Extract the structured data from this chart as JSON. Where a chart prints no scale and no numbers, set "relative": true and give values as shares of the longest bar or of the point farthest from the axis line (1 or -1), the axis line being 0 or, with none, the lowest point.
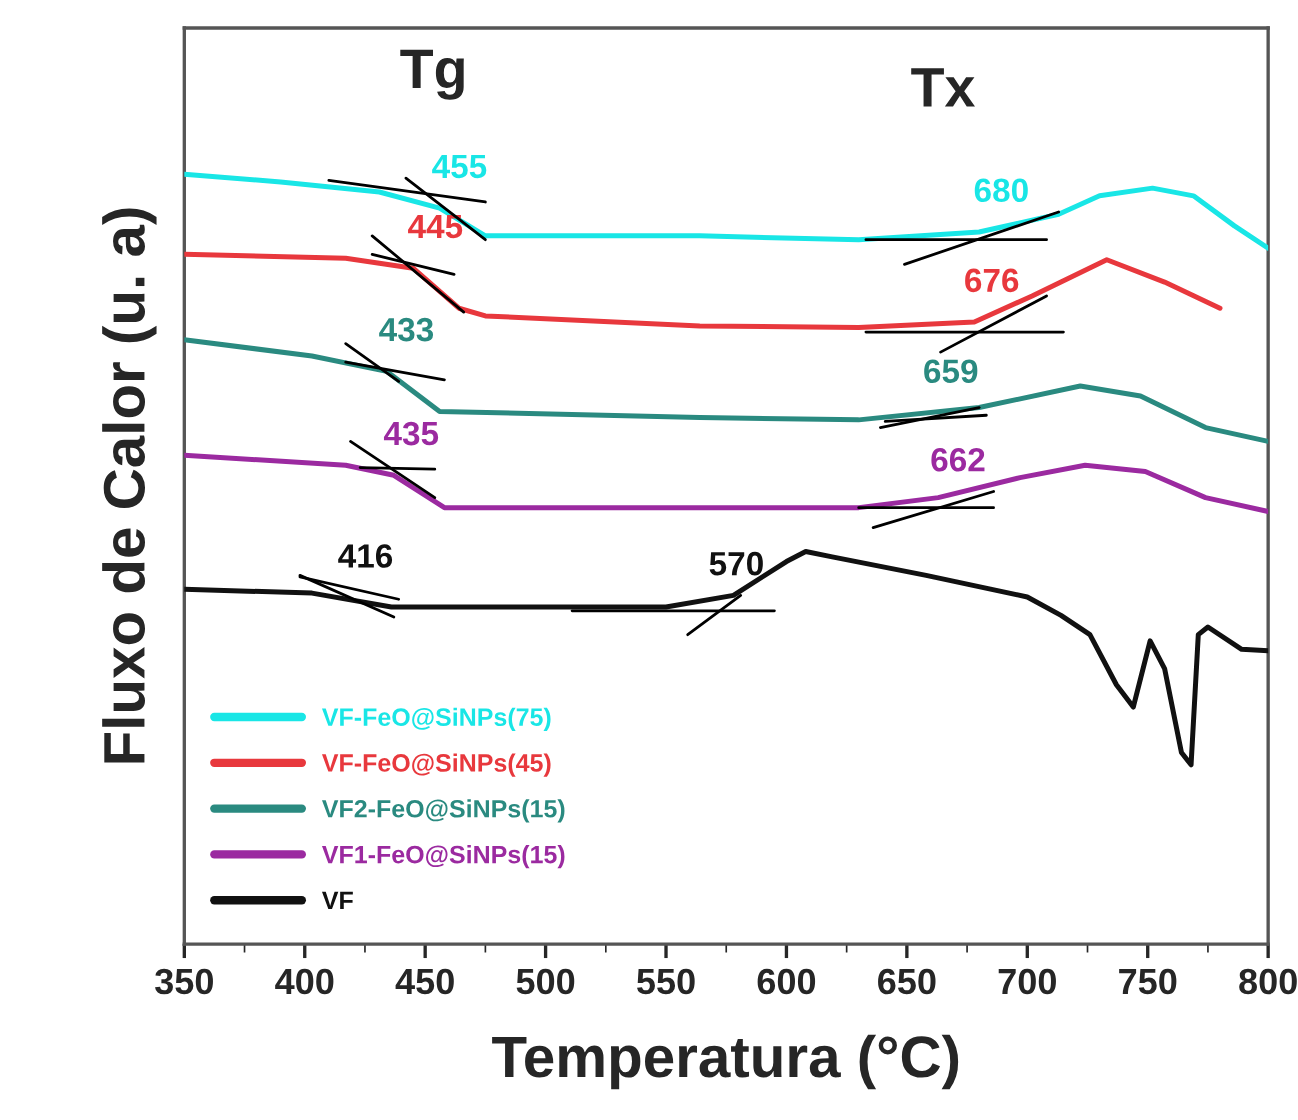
{
  "chart_data": {
    "type": "line",
    "relative": true,
    "xlabel": "Temperatura (°C)",
    "ylabel": "Fluxo de Calor (u. a)",
    "xlim": [
      350,
      800
    ],
    "xticks": [
      350,
      400,
      450,
      500,
      550,
      600,
      650,
      700,
      750,
      800
    ],
    "legend": "bottom left",
    "grid": false,
    "marker": "none",
    "line_style": "solid",
    "series": [
      {
        "name": "VF-FeO@SiNPs(75)",
        "color": "#19e6e6",
        "x": [
          350,
          390,
          431,
          456,
          475,
          564,
          630,
          680,
          713,
          730,
          752,
          769,
          786,
          800
        ],
        "values": [
          1.0,
          0.99,
          0.977,
          0.956,
          0.92,
          0.92,
          0.915,
          0.925,
          0.948,
          0.972,
          0.982,
          0.972,
          0.933,
          0.904
        ]
      },
      {
        "name": "VF-FeO@SiNPs(45)",
        "color": "#e8383d",
        "x": [
          350,
          417,
          445,
          464,
          475,
          564,
          630,
          678,
          702,
          733,
          757,
          780
        ],
        "values": [
          0.896,
          0.891,
          0.878,
          0.826,
          0.816,
          0.803,
          0.801,
          0.808,
          0.842,
          0.889,
          0.86,
          0.826
        ]
      },
      {
        "name": "VF2-FeO@SiNPs(15)",
        "color": "#2a8a80",
        "x": [
          350,
          403,
          434,
          456,
          564,
          630,
          680,
          722,
          747,
          774,
          800
        ],
        "values": [
          0.785,
          0.764,
          0.744,
          0.692,
          0.684,
          0.681,
          0.697,
          0.725,
          0.712,
          0.671,
          0.653
        ]
      },
      {
        "name": "VF1-FeO@SiNPs(15)",
        "color": "#9b2aa0",
        "x": [
          350,
          417,
          437,
          458,
          564,
          630,
          663,
          697,
          724,
          749,
          774,
          800
        ],
        "values": [
          0.635,
          0.622,
          0.609,
          0.567,
          0.567,
          0.567,
          0.58,
          0.606,
          0.622,
          0.614,
          0.58,
          0.562
        ]
      },
      {
        "name": "VF",
        "color": "#111111",
        "x": [
          350,
          403,
          436,
          550,
          578,
          600,
          608,
          619,
          658,
          700,
          714,
          726,
          737,
          744,
          751,
          757,
          764,
          768,
          771,
          775,
          789,
          800
        ],
        "values": [
          0.461,
          0.456,
          0.438,
          0.438,
          0.453,
          0.497,
          0.51,
          0.503,
          0.479,
          0.451,
          0.427,
          0.402,
          0.337,
          0.308,
          0.394,
          0.358,
          0.249,
          0.233,
          0.402,
          0.412,
          0.383,
          0.381
        ]
      },
      {
        "color": "#000000",
        "x": [
          410,
          475
        ],
        "values": [
          0.992,
          0.964
        ]
      },
      {
        "color": "#000000",
        "x": [
          442,
          475
        ],
        "values": [
          0.995,
          0.915
        ]
      },
      {
        "color": "#000000",
        "x": [
          428,
          462
        ],
        "values": [
          0.896,
          0.87
        ]
      },
      {
        "color": "#000000",
        "x": [
          428,
          466
        ],
        "values": [
          0.92,
          0.821
        ]
      },
      {
        "color": "#000000",
        "x": [
          417,
          458
        ],
        "values": [
          0.756,
          0.733
        ]
      },
      {
        "color": "#000000",
        "x": [
          417,
          439
        ],
        "values": [
          0.78,
          0.731
        ]
      },
      {
        "color": "#000000",
        "x": [
          423,
          454
        ],
        "values": [
          0.619,
          0.617
        ]
      },
      {
        "color": "#000000",
        "x": [
          419,
          454
        ],
        "values": [
          0.653,
          0.58
        ]
      },
      {
        "color": "#000000",
        "x": [
          398,
          437
        ],
        "values": [
          0.479,
          0.425
        ]
      },
      {
        "color": "#000000",
        "x": [
          398,
          439
        ],
        "values": [
          0.477,
          0.448
        ]
      },
      {
        "color": "#000000",
        "x": [
          511,
          595
        ],
        "values": [
          0.433,
          0.433
        ]
      },
      {
        "color": "#000000",
        "x": [
          559,
          581
        ],
        "values": [
          0.402,
          0.453
        ]
      },
      {
        "color": "#000000",
        "x": [
          633,
          708
        ],
        "values": [
          0.915,
          0.915
        ]
      },
      {
        "color": "#000000",
        "x": [
          649,
          713
        ],
        "values": [
          0.883,
          0.951
        ]
      },
      {
        "color": "#000000",
        "x": [
          633,
          715
        ],
        "values": [
          0.795,
          0.795
        ]
      },
      {
        "color": "#000000",
        "x": [
          664,
          708
        ],
        "values": [
          0.769,
          0.842
        ]
      },
      {
        "color": "#000000",
        "x": [
          641,
          683
        ],
        "values": [
          0.679,
          0.687
        ]
      },
      {
        "color": "#000000",
        "x": [
          639,
          680
        ],
        "values": [
          0.671,
          0.697
        ]
      },
      {
        "color": "#000000",
        "x": [
          630,
          686
        ],
        "values": [
          0.567,
          0.567
        ]
      },
      {
        "color": "#000000",
        "x": [
          636,
          686
        ],
        "values": [
          0.541,
          0.588
        ]
      }
    ],
    "annotations": [
      "Tg",
      "Tx",
      {
        "text": "455",
        "x": 455,
        "y": 0.956
      },
      {
        "text": "445",
        "x": 445,
        "y": 0.878
      },
      {
        "text": "433",
        "x": 433,
        "y": 0.744
      },
      {
        "text": "435",
        "x": 435,
        "y": 0.609
      },
      {
        "text": "416",
        "x": 416,
        "y": 0.45
      },
      {
        "text": "570",
        "x": 570,
        "y": 0.44
      },
      {
        "text": "680",
        "x": 680,
        "y": 0.925
      },
      {
        "text": "676",
        "x": 676,
        "y": 0.808
      },
      {
        "text": "659",
        "x": 659,
        "y": 0.69
      },
      {
        "text": "662",
        "x": 662,
        "y": 0.575
      }
    ]
  }
}
